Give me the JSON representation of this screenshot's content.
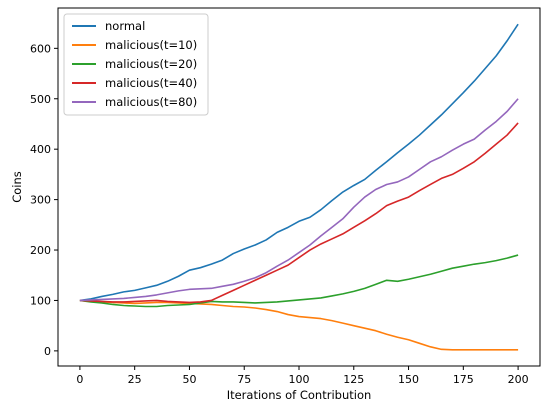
{
  "chart_data": {
    "type": "line",
    "title": "",
    "xlabel": "Iterations of Contribution",
    "ylabel": "Coins",
    "xlim": [
      -10,
      210
    ],
    "ylim": [
      -30,
      680
    ],
    "xticks": [
      0,
      25,
      50,
      75,
      100,
      125,
      150,
      175,
      200
    ],
    "yticks": [
      0,
      100,
      200,
      300,
      400,
      500,
      600
    ],
    "grid": false,
    "legend_position": "top-left",
    "series": [
      {
        "name": "normal",
        "color": "#1f77b4",
        "x": [
          0,
          5,
          10,
          15,
          20,
          25,
          30,
          35,
          40,
          45,
          50,
          55,
          60,
          65,
          70,
          75,
          80,
          85,
          90,
          95,
          100,
          105,
          110,
          115,
          120,
          125,
          130,
          135,
          140,
          145,
          150,
          155,
          160,
          165,
          170,
          175,
          180,
          185,
          190,
          195,
          200
        ],
        "y": [
          100,
          103,
          108,
          112,
          117,
          120,
          125,
          130,
          138,
          148,
          160,
          165,
          172,
          180,
          193,
          202,
          210,
          220,
          235,
          245,
          257,
          265,
          280,
          298,
          315,
          328,
          340,
          358,
          375,
          393,
          410,
          428,
          448,
          468,
          490,
          512,
          535,
          560,
          585,
          615,
          648
        ]
      },
      {
        "name": "malicious(t=10)",
        "color": "#ff7f0e",
        "x": [
          0,
          5,
          10,
          15,
          20,
          25,
          30,
          35,
          40,
          45,
          50,
          55,
          60,
          65,
          70,
          75,
          80,
          85,
          90,
          95,
          100,
          105,
          110,
          115,
          120,
          125,
          130,
          135,
          140,
          145,
          150,
          155,
          160,
          165,
          170,
          175,
          180,
          185,
          190,
          195,
          200
        ],
        "y": [
          100,
          98,
          97,
          96,
          95,
          94,
          95,
          96,
          96,
          95,
          94,
          93,
          92,
          90,
          88,
          87,
          85,
          82,
          78,
          72,
          68,
          66,
          64,
          60,
          55,
          50,
          45,
          40,
          33,
          27,
          22,
          15,
          8,
          3,
          2,
          2,
          2,
          2,
          2,
          2,
          2
        ]
      },
      {
        "name": "malicious(t=20)",
        "color": "#2ca02c",
        "x": [
          0,
          5,
          10,
          15,
          20,
          25,
          30,
          35,
          40,
          45,
          50,
          55,
          60,
          65,
          70,
          75,
          80,
          85,
          90,
          95,
          100,
          105,
          110,
          115,
          120,
          125,
          130,
          135,
          140,
          145,
          150,
          155,
          160,
          165,
          170,
          175,
          180,
          185,
          190,
          195,
          200
        ],
        "y": [
          100,
          97,
          95,
          92,
          90,
          89,
          88,
          88,
          90,
          91,
          92,
          95,
          98,
          97,
          97,
          96,
          95,
          96,
          97,
          99,
          101,
          103,
          105,
          109,
          113,
          118,
          124,
          132,
          140,
          138,
          142,
          147,
          152,
          158,
          164,
          168,
          172,
          175,
          179,
          184,
          190
        ]
      },
      {
        "name": "malicious(t=40)",
        "color": "#d62728",
        "x": [
          0,
          5,
          10,
          15,
          20,
          25,
          30,
          35,
          40,
          45,
          50,
          55,
          60,
          65,
          70,
          75,
          80,
          85,
          90,
          95,
          100,
          105,
          110,
          115,
          120,
          125,
          130,
          135,
          140,
          145,
          150,
          155,
          160,
          165,
          170,
          175,
          180,
          185,
          190,
          195,
          200
        ],
        "y": [
          100,
          99,
          98,
          97,
          97,
          98,
          99,
          100,
          98,
          97,
          96,
          97,
          100,
          110,
          120,
          130,
          140,
          150,
          160,
          170,
          185,
          200,
          212,
          222,
          232,
          245,
          258,
          272,
          288,
          297,
          305,
          318,
          330,
          342,
          350,
          362,
          375,
          392,
          410,
          428,
          452
        ]
      },
      {
        "name": "malicious(t=80)",
        "color": "#9467bd",
        "x": [
          0,
          5,
          10,
          15,
          20,
          25,
          30,
          35,
          40,
          45,
          50,
          55,
          60,
          65,
          70,
          75,
          80,
          85,
          90,
          95,
          100,
          105,
          110,
          115,
          120,
          125,
          130,
          135,
          140,
          145,
          150,
          155,
          160,
          165,
          170,
          175,
          180,
          185,
          190,
          195,
          200
        ],
        "y": [
          100,
          101,
          102,
          103,
          104,
          106,
          108,
          111,
          115,
          119,
          122,
          123,
          124,
          128,
          132,
          138,
          145,
          155,
          168,
          180,
          195,
          210,
          228,
          245,
          262,
          285,
          305,
          320,
          330,
          335,
          345,
          360,
          375,
          385,
          398,
          410,
          420,
          438,
          455,
          475,
          500
        ]
      }
    ]
  }
}
